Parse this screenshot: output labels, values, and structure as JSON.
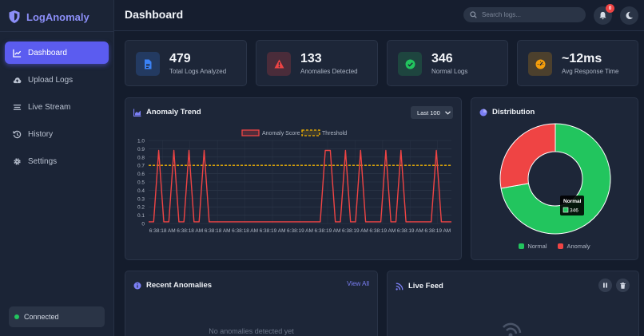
{
  "app": {
    "name": "LogAnomaly"
  },
  "sidebar": {
    "items": [
      {
        "label": "Dashboard",
        "icon": "chart-line-icon",
        "active": true
      },
      {
        "label": "Upload Logs",
        "icon": "cloud-upload-icon",
        "active": false
      },
      {
        "label": "Live Stream",
        "icon": "stream-icon",
        "active": false
      },
      {
        "label": "History",
        "icon": "history-icon",
        "active": false
      },
      {
        "label": "Settings",
        "icon": "gear-icon",
        "active": false
      }
    ],
    "status": "Connected"
  },
  "header": {
    "title": "Dashboard",
    "search_placeholder": "Search logs...",
    "notification_count": "0"
  },
  "stats": [
    {
      "value": "479",
      "label": "Total Logs Analyzed",
      "icon": "file-icon",
      "color": "#3b82f6"
    },
    {
      "value": "133",
      "label": "Anomalies Detected",
      "icon": "warning-icon",
      "color": "#ef4444"
    },
    {
      "value": "346",
      "label": "Normal Logs",
      "icon": "check-circle-icon",
      "color": "#22c55e"
    },
    {
      "value": "~12ms",
      "label": "Avg Response Time",
      "icon": "gauge-icon",
      "color": "#f59e0b"
    }
  ],
  "trend": {
    "title": "Anomaly Trend",
    "range_select": "Last 100"
  },
  "chart_data": {
    "type": "line",
    "x_tick_labels": [
      "6:38:18 AM",
      "6:38:18 AM",
      "6:38:18 AM",
      "6:38:18 AM",
      "6:38:19 AM",
      "6:38:19 AM",
      "6:38:19 AM",
      "6:38:19 AM",
      "6:38:19 AM",
      "6:38:19 AM",
      "6:38:19 AM"
    ],
    "y_ticks": [
      "1.0",
      "0.9",
      "0.8",
      "0.7",
      "0.6",
      "0.5",
      "0.4",
      "0.3",
      "0.2",
      "0.1",
      "0"
    ],
    "ylim": [
      0,
      1.0
    ],
    "legend": [
      "Anomaly Score",
      "Threshold"
    ],
    "series": [
      {
        "name": "Anomaly Score",
        "color": "#ef4444",
        "values": [
          0.02,
          0.02,
          0.88,
          0.02,
          0.02,
          0.88,
          0.02,
          0.02,
          0.88,
          0.02,
          0.02,
          0.88,
          0.02,
          0.02,
          0.02,
          0.02,
          0.02,
          0.02,
          0.02,
          0.02,
          0.02,
          0.02,
          0.02,
          0.02,
          0.02,
          0.02,
          0.02,
          0.02,
          0.02,
          0.02,
          0.02,
          0.02,
          0.02,
          0.02,
          0.02,
          0.88,
          0.88,
          0.02,
          0.02,
          0.88,
          0.02,
          0.02,
          0.88,
          0.02,
          0.02,
          0.02,
          0.02,
          0.88,
          0.02,
          0.02,
          0.88,
          0.02,
          0.02,
          0.02,
          0.02,
          0.02,
          0.02,
          0.88,
          0.02,
          0.02,
          0.02
        ]
      },
      {
        "name": "Threshold",
        "color": "#f5b400",
        "values": [
          0.7,
          0.7
        ]
      }
    ]
  },
  "distribution": {
    "title": "Distribution",
    "chart_data": {
      "type": "pie",
      "categories": [
        "Normal",
        "Anomaly"
      ],
      "values": [
        346,
        133
      ],
      "colors": [
        "#22c55e",
        "#ef4444"
      ]
    },
    "tooltip": {
      "title": "Normal",
      "value": "346"
    }
  },
  "recent": {
    "title": "Recent Anomalies",
    "view_all": "View All",
    "empty": "No anomalies detected yet"
  },
  "feed": {
    "title": "Live Feed"
  }
}
